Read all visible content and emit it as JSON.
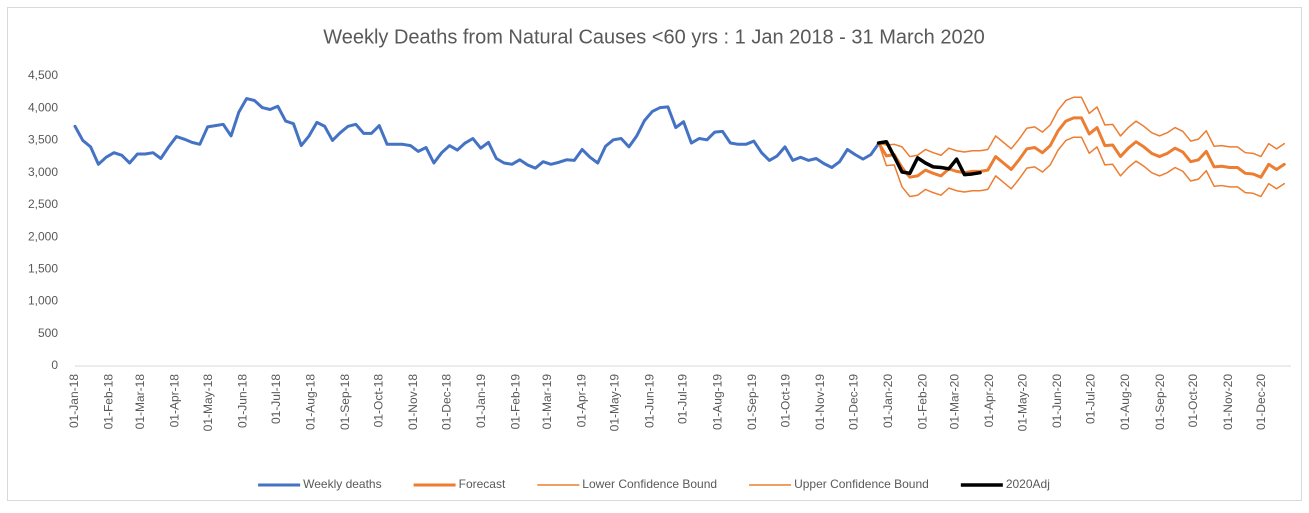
{
  "chart_data": {
    "type": "line",
    "title": "Weekly  Deaths from Natural Causes <60 yrs : 1 Jan 2018 - 31 March 2020",
    "x": [
      "2018-01-01",
      "2018-01-08",
      "2018-01-15",
      "2018-01-22",
      "2018-01-29",
      "2018-02-05",
      "2018-02-12",
      "2018-02-19",
      "2018-02-26",
      "2018-03-05",
      "2018-03-12",
      "2018-03-19",
      "2018-03-26",
      "2018-04-02",
      "2018-04-09",
      "2018-04-16",
      "2018-04-23",
      "2018-04-30",
      "2018-05-07",
      "2018-05-14",
      "2018-05-21",
      "2018-05-28",
      "2018-06-04",
      "2018-06-11",
      "2018-06-18",
      "2018-06-25",
      "2018-07-02",
      "2018-07-09",
      "2018-07-16",
      "2018-07-23",
      "2018-07-30",
      "2018-08-06",
      "2018-08-13",
      "2018-08-20",
      "2018-08-27",
      "2018-09-03",
      "2018-09-10",
      "2018-09-17",
      "2018-09-24",
      "2018-10-01",
      "2018-10-08",
      "2018-10-15",
      "2018-10-22",
      "2018-10-29",
      "2018-11-05",
      "2018-11-12",
      "2018-11-19",
      "2018-11-26",
      "2018-12-03",
      "2018-12-10",
      "2018-12-17",
      "2018-12-24",
      "2018-12-31",
      "2019-01-07",
      "2019-01-14",
      "2019-01-21",
      "2019-01-28",
      "2019-02-04",
      "2019-02-11",
      "2019-02-18",
      "2019-02-25",
      "2019-03-04",
      "2019-03-11",
      "2019-03-18",
      "2019-03-25",
      "2019-04-01",
      "2019-04-08",
      "2019-04-15",
      "2019-04-22",
      "2019-04-29",
      "2019-05-06",
      "2019-05-13",
      "2019-05-20",
      "2019-05-27",
      "2019-06-03",
      "2019-06-10",
      "2019-06-17",
      "2019-06-24",
      "2019-07-01",
      "2019-07-08",
      "2019-07-15",
      "2019-07-22",
      "2019-07-29",
      "2019-08-05",
      "2019-08-12",
      "2019-08-19",
      "2019-08-26",
      "2019-09-02",
      "2019-09-09",
      "2019-09-16",
      "2019-09-23",
      "2019-09-30",
      "2019-10-07",
      "2019-10-14",
      "2019-10-21",
      "2019-10-28",
      "2019-11-04",
      "2019-11-11",
      "2019-11-18",
      "2019-11-25",
      "2019-12-02",
      "2019-12-09",
      "2019-12-16",
      "2019-12-23",
      "2019-12-30",
      "2020-01-06",
      "2020-01-13",
      "2020-01-20",
      "2020-01-27",
      "2020-02-03",
      "2020-02-10",
      "2020-02-17",
      "2020-02-24",
      "2020-03-02",
      "2020-03-09",
      "2020-03-16",
      "2020-03-23",
      "2020-03-30",
      "2020-04-06",
      "2020-04-13",
      "2020-04-20",
      "2020-04-27",
      "2020-05-04",
      "2020-05-11",
      "2020-05-18",
      "2020-05-25",
      "2020-06-01",
      "2020-06-08",
      "2020-06-15",
      "2020-06-22",
      "2020-06-29",
      "2020-07-06",
      "2020-07-13",
      "2020-07-20",
      "2020-07-27",
      "2020-08-03",
      "2020-08-10",
      "2020-08-17",
      "2020-08-24",
      "2020-08-31",
      "2020-09-07",
      "2020-09-14",
      "2020-09-21",
      "2020-09-28",
      "2020-10-05",
      "2020-10-12",
      "2020-10-19",
      "2020-10-26",
      "2020-11-02",
      "2020-11-09",
      "2020-11-16",
      "2020-11-23",
      "2020-11-30",
      "2020-12-07",
      "2020-12-14",
      "2020-12-21"
    ],
    "series": [
      {
        "name": "Weekly deaths",
        "color": "#4472c4",
        "line_width": 3,
        "values": [
          3720,
          3500,
          3400,
          3130,
          3240,
          3310,
          3270,
          3150,
          3290,
          3290,
          3310,
          3220,
          3400,
          3560,
          3520,
          3470,
          3440,
          3710,
          3730,
          3750,
          3570,
          3940,
          4150,
          4120,
          4010,
          3980,
          4030,
          3800,
          3760,
          3420,
          3570,
          3780,
          3720,
          3500,
          3620,
          3720,
          3750,
          3610,
          3610,
          3730,
          3440,
          3440,
          3440,
          3420,
          3330,
          3390,
          3150,
          3310,
          3420,
          3350,
          3460,
          3530,
          3380,
          3470,
          3220,
          3150,
          3130,
          3200,
          3120,
          3070,
          3170,
          3130,
          3160,
          3200,
          3190,
          3360,
          3240,
          3150,
          3410,
          3510,
          3530,
          3400,
          3570,
          3810,
          3950,
          4010,
          4020,
          3700,
          3790,
          3460,
          3530,
          3510,
          3630,
          3640,
          3460,
          3440,
          3440,
          3490,
          3310,
          3190,
          3260,
          3400,
          3190,
          3240,
          3190,
          3220,
          3140,
          3080,
          3170,
          3360,
          3280,
          3210,
          3280,
          3450,
          null,
          null,
          null,
          null,
          null,
          null,
          null,
          null,
          null,
          null,
          null,
          null,
          null,
          null,
          null,
          null,
          null,
          null,
          null,
          null,
          null,
          null,
          null,
          null,
          null,
          null,
          null,
          null,
          null,
          null,
          null,
          null,
          null,
          null,
          null,
          null,
          null,
          null,
          null,
          null,
          null,
          null,
          null,
          null,
          null,
          null,
          null,
          null,
          null,
          null,
          null,
          null
        ]
      },
      {
        "name": "Forecast",
        "color": "#ed7d31",
        "line_width": 3,
        "values": [
          null,
          null,
          null,
          null,
          null,
          null,
          null,
          null,
          null,
          null,
          null,
          null,
          null,
          null,
          null,
          null,
          null,
          null,
          null,
          null,
          null,
          null,
          null,
          null,
          null,
          null,
          null,
          null,
          null,
          null,
          null,
          null,
          null,
          null,
          null,
          null,
          null,
          null,
          null,
          null,
          null,
          null,
          null,
          null,
          null,
          null,
          null,
          null,
          null,
          null,
          null,
          null,
          null,
          null,
          null,
          null,
          null,
          null,
          null,
          null,
          null,
          null,
          null,
          null,
          null,
          null,
          null,
          null,
          null,
          null,
          null,
          null,
          null,
          null,
          null,
          null,
          null,
          null,
          null,
          null,
          null,
          null,
          null,
          null,
          null,
          null,
          null,
          null,
          null,
          null,
          null,
          null,
          null,
          null,
          null,
          null,
          null,
          null,
          null,
          null,
          null,
          null,
          null,
          3460,
          3260,
          3280,
          3080,
          2930,
          2950,
          3040,
          2990,
          2950,
          3060,
          3020,
          3000,
          3020,
          3020,
          3040,
          3250,
          3150,
          3050,
          3200,
          3370,
          3390,
          3310,
          3420,
          3650,
          3800,
          3850,
          3850,
          3600,
          3700,
          3420,
          3430,
          3250,
          3380,
          3480,
          3400,
          3300,
          3250,
          3300,
          3380,
          3320,
          3170,
          3200,
          3330,
          3090,
          3100,
          3080,
          3080,
          2990,
          2980,
          2930,
          3130,
          3050,
          3130
        ]
      },
      {
        "name": "Lower Confidence Bound",
        "color": "#ed7d31",
        "line_width": 1.5,
        "values": [
          null,
          null,
          null,
          null,
          null,
          null,
          null,
          null,
          null,
          null,
          null,
          null,
          null,
          null,
          null,
          null,
          null,
          null,
          null,
          null,
          null,
          null,
          null,
          null,
          null,
          null,
          null,
          null,
          null,
          null,
          null,
          null,
          null,
          null,
          null,
          null,
          null,
          null,
          null,
          null,
          null,
          null,
          null,
          null,
          null,
          null,
          null,
          null,
          null,
          null,
          null,
          null,
          null,
          null,
          null,
          null,
          null,
          null,
          null,
          null,
          null,
          null,
          null,
          null,
          null,
          null,
          null,
          null,
          null,
          null,
          null,
          null,
          null,
          null,
          null,
          null,
          null,
          null,
          null,
          null,
          null,
          null,
          null,
          null,
          null,
          null,
          null,
          null,
          null,
          null,
          null,
          null,
          null,
          null,
          null,
          null,
          null,
          null,
          null,
          null,
          null,
          null,
          null,
          3460,
          3110,
          3120,
          2780,
          2630,
          2650,
          2740,
          2690,
          2650,
          2760,
          2720,
          2700,
          2720,
          2720,
          2740,
          2950,
          2850,
          2750,
          2900,
          3070,
          3090,
          3010,
          3120,
          3350,
          3500,
          3550,
          3550,
          3300,
          3400,
          3120,
          3130,
          2950,
          3080,
          3180,
          3100,
          3000,
          2950,
          3000,
          3080,
          3020,
          2870,
          2900,
          3030,
          2790,
          2800,
          2780,
          2780,
          2690,
          2680,
          2630,
          2830,
          2750,
          2830
        ]
      },
      {
        "name": "Upper Confidence Bound",
        "color": "#ed7d31",
        "line_width": 1.5,
        "values": [
          null,
          null,
          null,
          null,
          null,
          null,
          null,
          null,
          null,
          null,
          null,
          null,
          null,
          null,
          null,
          null,
          null,
          null,
          null,
          null,
          null,
          null,
          null,
          null,
          null,
          null,
          null,
          null,
          null,
          null,
          null,
          null,
          null,
          null,
          null,
          null,
          null,
          null,
          null,
          null,
          null,
          null,
          null,
          null,
          null,
          null,
          null,
          null,
          null,
          null,
          null,
          null,
          null,
          null,
          null,
          null,
          null,
          null,
          null,
          null,
          null,
          null,
          null,
          null,
          null,
          null,
          null,
          null,
          null,
          null,
          null,
          null,
          null,
          null,
          null,
          null,
          null,
          null,
          null,
          null,
          null,
          null,
          null,
          null,
          null,
          null,
          null,
          null,
          null,
          null,
          null,
          null,
          null,
          null,
          null,
          null,
          null,
          null,
          null,
          null,
          null,
          null,
          null,
          3460,
          3430,
          3440,
          3400,
          3250,
          3270,
          3360,
          3310,
          3270,
          3380,
          3340,
          3320,
          3340,
          3340,
          3360,
          3570,
          3470,
          3370,
          3520,
          3690,
          3710,
          3630,
          3740,
          3970,
          4120,
          4170,
          4170,
          3920,
          4020,
          3740,
          3750,
          3570,
          3700,
          3800,
          3720,
          3620,
          3570,
          3620,
          3700,
          3640,
          3490,
          3520,
          3650,
          3410,
          3420,
          3400,
          3400,
          3310,
          3300,
          3250,
          3450,
          3370,
          3450
        ]
      },
      {
        "name": "2020Adj",
        "color": "#000000",
        "line_width": 3.5,
        "values": [
          null,
          null,
          null,
          null,
          null,
          null,
          null,
          null,
          null,
          null,
          null,
          null,
          null,
          null,
          null,
          null,
          null,
          null,
          null,
          null,
          null,
          null,
          null,
          null,
          null,
          null,
          null,
          null,
          null,
          null,
          null,
          null,
          null,
          null,
          null,
          null,
          null,
          null,
          null,
          null,
          null,
          null,
          null,
          null,
          null,
          null,
          null,
          null,
          null,
          null,
          null,
          null,
          null,
          null,
          null,
          null,
          null,
          null,
          null,
          null,
          null,
          null,
          null,
          null,
          null,
          null,
          null,
          null,
          null,
          null,
          null,
          null,
          null,
          null,
          null,
          null,
          null,
          null,
          null,
          null,
          null,
          null,
          null,
          null,
          null,
          null,
          null,
          null,
          null,
          null,
          null,
          null,
          null,
          null,
          null,
          null,
          null,
          null,
          null,
          null,
          null,
          null,
          null,
          3460,
          3480,
          3250,
          3010,
          2990,
          3230,
          3150,
          3090,
          3080,
          3060,
          3210,
          2970,
          2980,
          3000,
          null,
          null,
          null,
          null,
          null,
          null,
          null,
          null,
          null,
          null,
          null,
          null,
          null,
          null,
          null,
          null,
          null,
          null,
          null,
          null,
          null,
          null,
          null,
          null,
          null,
          null,
          null,
          null,
          null,
          null,
          null,
          null,
          null,
          null,
          null,
          null,
          null,
          null,
          null
        ]
      }
    ],
    "xlim": [
      "2018-01-01",
      "2020-12-27"
    ],
    "xticks": [
      {
        "value": "2018-01-01",
        "label": "01-Jan-18"
      },
      {
        "value": "2018-02-01",
        "label": "01-Feb-18"
      },
      {
        "value": "2018-03-01",
        "label": "01-Mar-18"
      },
      {
        "value": "2018-04-01",
        "label": "01-Apr-18"
      },
      {
        "value": "2018-05-01",
        "label": "01-May-18"
      },
      {
        "value": "2018-06-01",
        "label": "01-Jun-18"
      },
      {
        "value": "2018-07-01",
        "label": "01-Jul-18"
      },
      {
        "value": "2018-08-01",
        "label": "01-Aug-18"
      },
      {
        "value": "2018-09-01",
        "label": "01-Sep-18"
      },
      {
        "value": "2018-10-01",
        "label": "01-Oct-18"
      },
      {
        "value": "2018-11-01",
        "label": "01-Nov-18"
      },
      {
        "value": "2018-12-01",
        "label": "01-Dec-18"
      },
      {
        "value": "2019-01-01",
        "label": "01-Jan-19"
      },
      {
        "value": "2019-02-01",
        "label": "01-Feb-19"
      },
      {
        "value": "2019-03-01",
        "label": "01-Mar-19"
      },
      {
        "value": "2019-04-01",
        "label": "01-Apr-19"
      },
      {
        "value": "2019-05-01",
        "label": "01-May-19"
      },
      {
        "value": "2019-06-01",
        "label": "01-Jun-19"
      },
      {
        "value": "2019-07-01",
        "label": "01-Jul-19"
      },
      {
        "value": "2019-08-01",
        "label": "01-Aug-19"
      },
      {
        "value": "2019-09-01",
        "label": "01-Sep-19"
      },
      {
        "value": "2019-10-01",
        "label": "01-Oct-19"
      },
      {
        "value": "2019-11-01",
        "label": "01-Nov-19"
      },
      {
        "value": "2019-12-01",
        "label": "01-Dec-19"
      },
      {
        "value": "2020-01-01",
        "label": "01-Jan-20"
      },
      {
        "value": "2020-02-01",
        "label": "01-Feb-20"
      },
      {
        "value": "2020-03-01",
        "label": "01-Mar-20"
      },
      {
        "value": "2020-04-01",
        "label": "01-Apr-20"
      },
      {
        "value": "2020-05-01",
        "label": "01-May-20"
      },
      {
        "value": "2020-06-01",
        "label": "01-Jun-20"
      },
      {
        "value": "2020-07-01",
        "label": "01-Jul-20"
      },
      {
        "value": "2020-08-01",
        "label": "01-Aug-20"
      },
      {
        "value": "2020-09-01",
        "label": "01-Sep-20"
      },
      {
        "value": "2020-10-01",
        "label": "01-Oct-20"
      },
      {
        "value": "2020-11-01",
        "label": "01-Nov-20"
      },
      {
        "value": "2020-12-01",
        "label": "01-Dec-20"
      }
    ],
    "ylim": [
      0,
      4500
    ],
    "yticks": [
      0,
      500,
      {
        "value": 1000,
        "label": "1,000"
      },
      {
        "value": 1500,
        "label": "1,500"
      },
      {
        "value": 2000,
        "label": "2,000"
      },
      {
        "value": 2500,
        "label": "2,500"
      },
      {
        "value": 3000,
        "label": "3,000"
      },
      {
        "value": 3500,
        "label": "3,500"
      },
      {
        "value": 4000,
        "label": "4,000"
      },
      {
        "value": 4500,
        "label": "4,500"
      }
    ],
    "grid": false,
    "legend": "bottom"
  }
}
